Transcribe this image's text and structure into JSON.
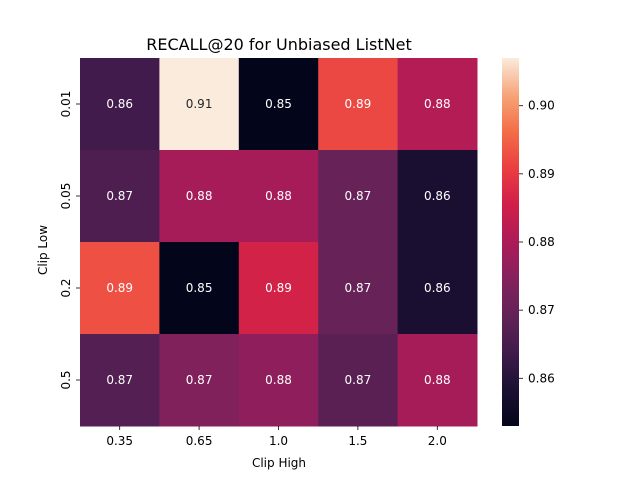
{
  "chart_data": {
    "type": "heatmap",
    "title": "RECALL@20 for Unbiased ListNet",
    "xlabel": "Clip High",
    "ylabel": "Clip Low",
    "x_categories": [
      "0.35",
      "0.65",
      "1.0",
      "1.5",
      "2.0"
    ],
    "y_categories": [
      "0.01",
      "0.05",
      "0.2",
      "0.5"
    ],
    "values": [
      [
        0.864,
        0.907,
        0.853,
        0.892,
        0.881
      ],
      [
        0.866,
        0.879,
        0.879,
        0.87,
        0.858
      ],
      [
        0.893,
        0.853,
        0.886,
        0.87,
        0.858
      ],
      [
        0.867,
        0.874,
        0.876,
        0.868,
        0.879
      ]
    ],
    "cell_labels": [
      [
        "0.86",
        "0.91",
        "0.85",
        "0.89",
        "0.88"
      ],
      [
        "0.87",
        "0.88",
        "0.88",
        "0.87",
        "0.86"
      ],
      [
        "0.89",
        "0.85",
        "0.89",
        "0.87",
        "0.86"
      ],
      [
        "0.87",
        "0.87",
        "0.88",
        "0.87",
        "0.88"
      ]
    ],
    "colorbar": {
      "min": 0.853,
      "max": 0.907,
      "ticks": [
        0.86,
        0.87,
        0.88,
        0.89,
        0.9
      ],
      "tick_labels": [
        "0.86",
        "0.87",
        "0.88",
        "0.89",
        "0.90"
      ]
    },
    "colormap": "rocket",
    "grid": false,
    "legend": "colorbar-right"
  }
}
